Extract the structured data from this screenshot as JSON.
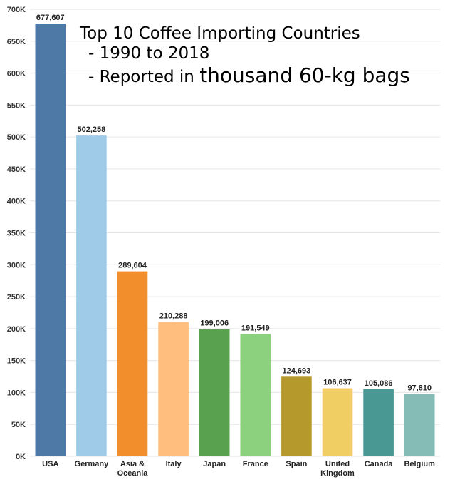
{
  "chart_data": {
    "type": "bar",
    "title": "Top 10 Coffee Importing Countries",
    "subtitle_lines": [
      "- 1990 to 2018",
      "- Reported in",
      "thousand 60-kg bags"
    ],
    "xlabel": "",
    "ylabel": "",
    "ylim": [
      0,
      700000
    ],
    "grid": true,
    "y_ticks": [
      "0K",
      "50K",
      "100K",
      "150K",
      "200K",
      "250K",
      "300K",
      "350K",
      "400K",
      "450K",
      "500K",
      "550K",
      "600K",
      "650K",
      "700K"
    ],
    "categories": [
      [
        "USA"
      ],
      [
        "Germany"
      ],
      [
        "Asia &",
        "Oceania"
      ],
      [
        "Italy"
      ],
      [
        "Japan"
      ],
      [
        "France"
      ],
      [
        "Spain"
      ],
      [
        "United",
        "Kingdom"
      ],
      [
        "Canada"
      ],
      [
        "Belgium"
      ]
    ],
    "values": [
      677607,
      502258,
      289604,
      210288,
      199006,
      191549,
      124693,
      106637,
      105086,
      97810
    ],
    "value_labels": [
      "677,607",
      "502,258",
      "289,604",
      "210,288",
      "199,006",
      "191,549",
      "124,693",
      "106,637",
      "105,086",
      "97,810"
    ],
    "colors": [
      "#4e79a7",
      "#a0cbe8",
      "#f28e2b",
      "#ffbe7d",
      "#59a14f",
      "#8cd17d",
      "#b6992d",
      "#f1ce63",
      "#499894",
      "#86bcb6"
    ]
  }
}
